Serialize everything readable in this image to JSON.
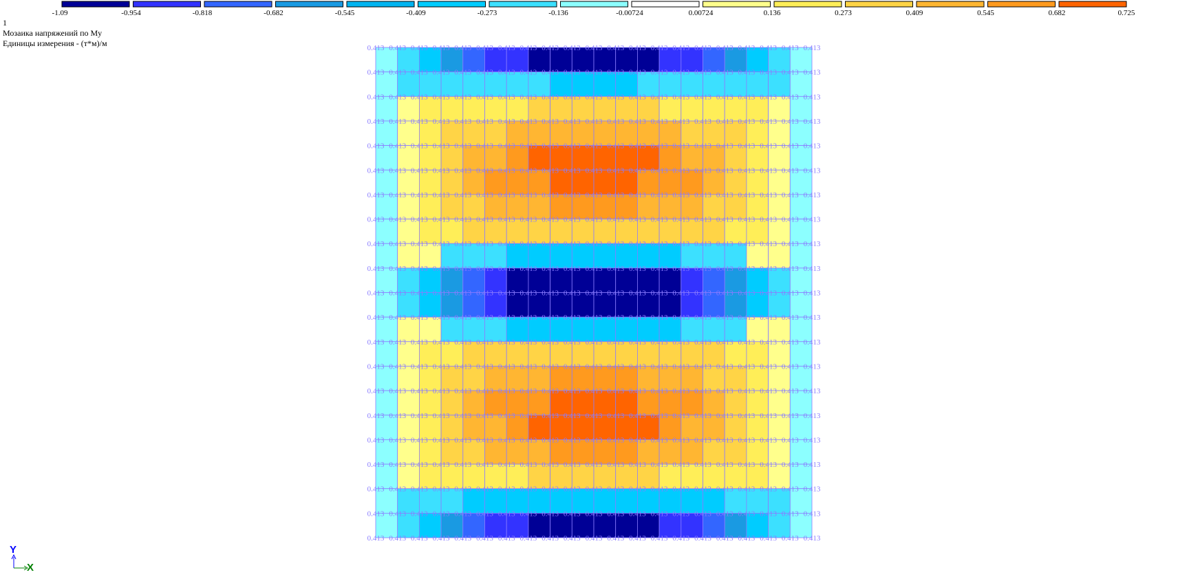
{
  "legend": {
    "labels": [
      "-1.09",
      "-0.954",
      "-0.818",
      "-0.682",
      "-0.545",
      "-0.409",
      "-0.273",
      "-0.136",
      "-0.00724",
      "0.00724",
      "0.136",
      "0.273",
      "0.409",
      "0.545",
      "0.682",
      "0.725"
    ],
    "colors": [
      "#000096",
      "#3333ff",
      "#3366ff",
      "#1a9ae2",
      "#00b4f0",
      "#00ccff",
      "#3ce0ff",
      "#8cffff",
      "#ffffff",
      "#ffff8c",
      "#ffee58",
      "#ffd446",
      "#ffb632",
      "#ff9a1e",
      "#ff6400"
    ]
  },
  "header": {
    "case": "1",
    "title": "Мозаика напряжений по My",
    "units": "Единицы измерения - (т*м)/м"
  },
  "mosaic": {
    "node_label": "0.413",
    "cell_classes": [
      [
        7,
        6,
        5,
        3,
        2,
        1,
        1,
        0,
        0,
        0,
        0,
        0,
        0,
        1,
        1,
        2,
        3,
        5,
        6,
        7
      ],
      [
        7,
        6,
        6,
        6,
        6,
        6,
        6,
        6,
        5,
        5,
        5,
        5,
        6,
        6,
        6,
        6,
        6,
        6,
        6,
        7
      ],
      [
        7,
        9,
        10,
        10,
        10,
        10,
        10,
        11,
        11,
        11,
        11,
        11,
        11,
        10,
        10,
        10,
        10,
        10,
        9,
        7
      ],
      [
        7,
        9,
        10,
        11,
        11,
        11,
        12,
        12,
        12,
        12,
        12,
        12,
        12,
        12,
        11,
        11,
        11,
        10,
        9,
        7
      ],
      [
        7,
        9,
        10,
        11,
        12,
        12,
        13,
        14,
        14,
        14,
        14,
        14,
        14,
        13,
        12,
        12,
        11,
        10,
        9,
        7
      ],
      [
        7,
        9,
        10,
        11,
        12,
        13,
        13,
        13,
        14,
        14,
        14,
        14,
        13,
        13,
        13,
        12,
        11,
        10,
        9,
        7
      ],
      [
        7,
        9,
        10,
        11,
        11,
        12,
        12,
        12,
        13,
        13,
        13,
        13,
        12,
        12,
        12,
        11,
        11,
        10,
        9,
        7
      ],
      [
        7,
        9,
        10,
        10,
        11,
        11,
        11,
        11,
        11,
        11,
        11,
        11,
        11,
        11,
        11,
        11,
        10,
        10,
        9,
        7
      ],
      [
        7,
        9,
        9,
        6,
        6,
        6,
        5,
        5,
        5,
        5,
        5,
        5,
        5,
        5,
        6,
        6,
        6,
        9,
        9,
        7
      ],
      [
        7,
        6,
        5,
        3,
        2,
        1,
        0,
        0,
        0,
        0,
        0,
        0,
        0,
        0,
        1,
        2,
        3,
        5,
        6,
        7
      ],
      [
        7,
        6,
        5,
        3,
        2,
        1,
        0,
        0,
        0,
        0,
        0,
        0,
        0,
        0,
        1,
        2,
        3,
        5,
        6,
        7
      ],
      [
        7,
        9,
        9,
        6,
        6,
        6,
        5,
        5,
        5,
        5,
        5,
        5,
        5,
        5,
        6,
        6,
        6,
        9,
        9,
        7
      ],
      [
        7,
        9,
        10,
        10,
        11,
        11,
        11,
        11,
        11,
        11,
        11,
        11,
        11,
        11,
        11,
        11,
        10,
        10,
        9,
        7
      ],
      [
        7,
        9,
        10,
        11,
        11,
        12,
        12,
        12,
        13,
        13,
        13,
        13,
        12,
        12,
        12,
        11,
        11,
        10,
        9,
        7
      ],
      [
        7,
        9,
        10,
        11,
        12,
        13,
        13,
        13,
        14,
        14,
        14,
        14,
        13,
        13,
        13,
        12,
        11,
        10,
        9,
        7
      ],
      [
        7,
        9,
        10,
        11,
        12,
        12,
        13,
        14,
        14,
        14,
        14,
        14,
        14,
        13,
        12,
        12,
        11,
        10,
        9,
        7
      ],
      [
        7,
        9,
        10,
        11,
        11,
        12,
        12,
        12,
        13,
        13,
        13,
        13,
        12,
        12,
        12,
        11,
        11,
        10,
        9,
        7
      ],
      [
        7,
        9,
        10,
        10,
        10,
        10,
        10,
        11,
        11,
        11,
        11,
        11,
        11,
        10,
        10,
        10,
        10,
        10,
        9,
        7
      ],
      [
        7,
        6,
        6,
        6,
        5,
        5,
        5,
        5,
        5,
        5,
        5,
        5,
        5,
        5,
        5,
        5,
        6,
        6,
        6,
        7
      ],
      [
        7,
        6,
        5,
        3,
        2,
        1,
        1,
        0,
        0,
        0,
        0,
        0,
        0,
        1,
        1,
        2,
        3,
        5,
        6,
        7
      ]
    ]
  },
  "axes": {
    "y": "Y",
    "x": "X"
  }
}
